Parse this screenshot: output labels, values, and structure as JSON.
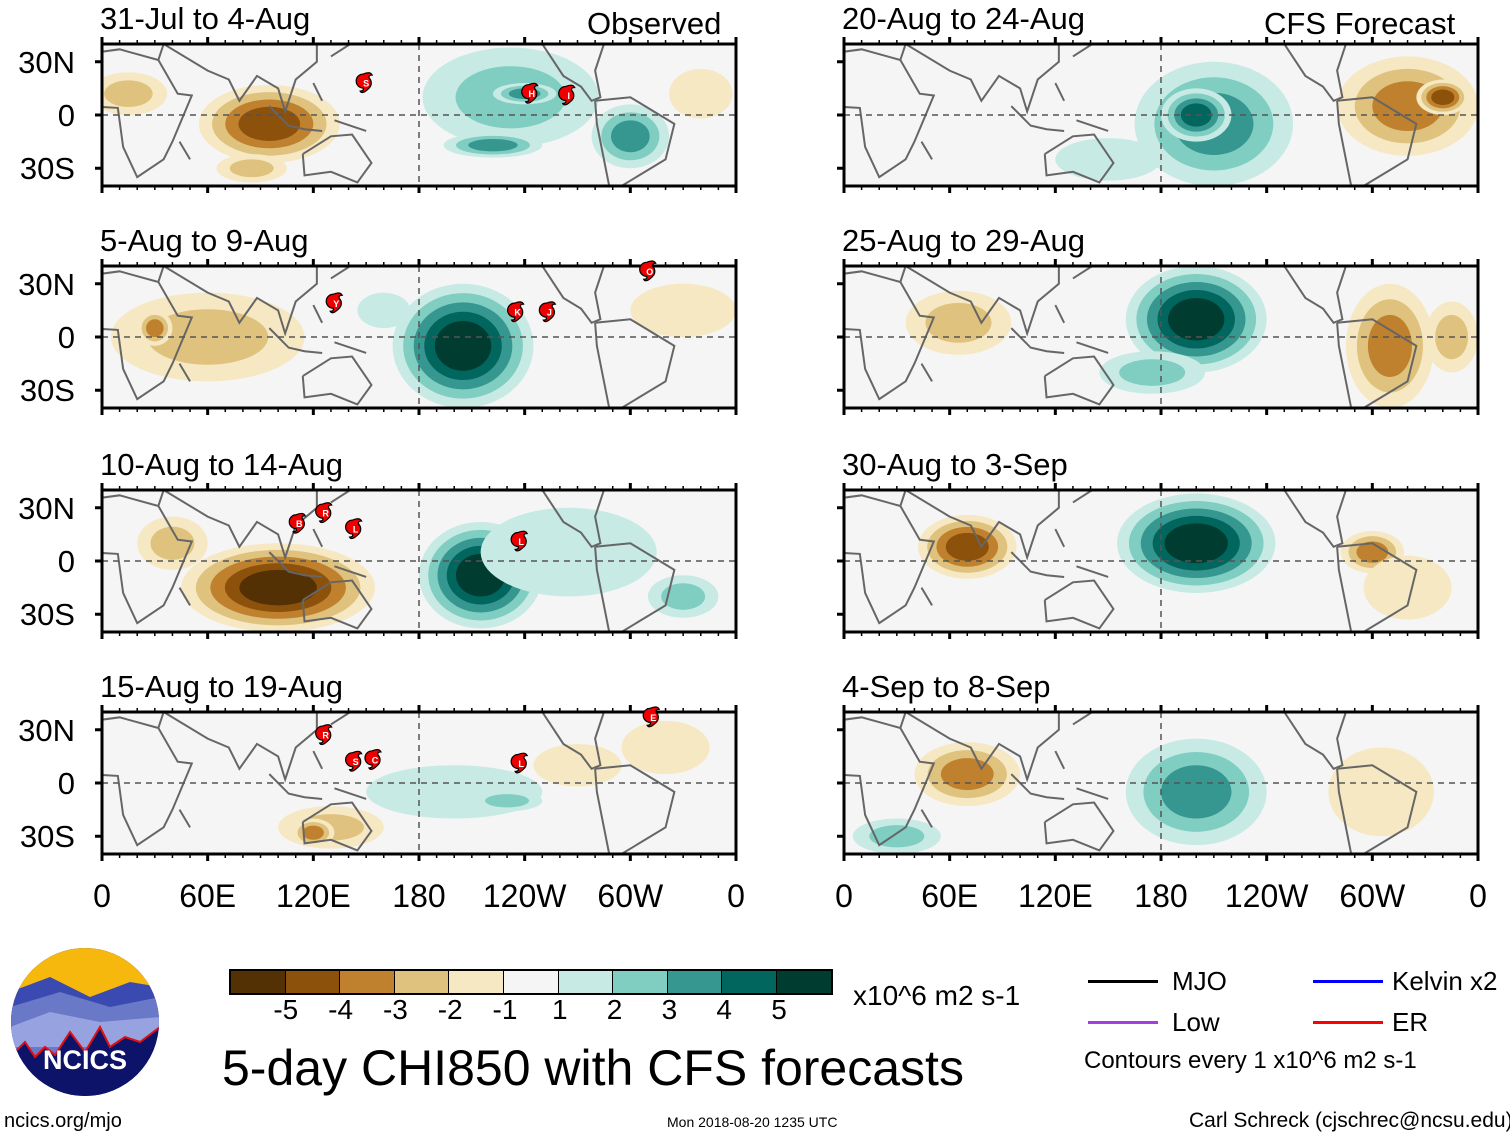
{
  "labels": {
    "observed": "Observed",
    "forecast": "CFS Forecast",
    "lat_ticks": [
      "30N",
      "0",
      "30S"
    ],
    "lon_ticks": [
      "0",
      "60E",
      "120E",
      "180",
      "120W",
      "60W",
      "0"
    ],
    "units": "x10^6 m2 s-1",
    "main_title": "5-day CHI850 with CFS forecasts",
    "url": "ncics.org/mjo",
    "timestamp": "Mon 2018-08-20 1235 UTC",
    "author": "Carl Schreck (cjschrec@ncsu.edu)",
    "contours_note": "Contours every 1 x10^6 m2 s-1",
    "logo_text": "NCICS"
  },
  "legend": [
    {
      "label": "MJO",
      "color": "#000000"
    },
    {
      "label": "Kelvin x2",
      "color": "#0000ff"
    },
    {
      "label": "Low",
      "color": "#a040e0"
    },
    {
      "label": "ER",
      "color": "#ff0000"
    }
  ],
  "colorbar": {
    "tick_labels": [
      "-5",
      "-4",
      "-3",
      "-2",
      "-1",
      "1",
      "2",
      "3",
      "4",
      "5"
    ],
    "colors": [
      "#543005",
      "#8c510a",
      "#bf812d",
      "#dfc27d",
      "#f6e8c3",
      "#f5f5f5",
      "#c7eae5",
      "#80cdc1",
      "#35978f",
      "#01665e",
      "#003c30"
    ]
  },
  "map_domain": {
    "lon_range": [
      0,
      360
    ],
    "lat_range": [
      -40,
      40
    ]
  },
  "panels": [
    {
      "title": "31-Jul to 4-Aug",
      "kind": "observed",
      "anomalies": [
        [
          95,
          -5,
          40,
          22,
          -4
        ],
        [
          15,
          12,
          22,
          12,
          -2
        ],
        [
          85,
          -30,
          20,
          8,
          -2
        ],
        [
          232,
          10,
          50,
          28,
          2
        ],
        [
          240,
          12,
          18,
          6,
          3
        ],
        [
          222,
          -17,
          28,
          7,
          3
        ],
        [
          300,
          -12,
          22,
          18,
          3
        ],
        [
          340,
          12,
          18,
          14,
          -1
        ]
      ],
      "storms": [
        {
          "letter": "S",
          "lon": 150,
          "lat": 18
        },
        {
          "letter": "H",
          "lon": 244,
          "lat": 12
        },
        {
          "letter": "I",
          "lon": 265,
          "lat": 11
        }
      ]
    },
    {
      "title": "5-Aug to 9-Aug",
      "kind": "observed",
      "anomalies": [
        [
          60,
          0,
          55,
          25,
          -2
        ],
        [
          30,
          5,
          10,
          10,
          -3
        ],
        [
          205,
          -5,
          40,
          35,
          5
        ],
        [
          160,
          15,
          15,
          10,
          1
        ],
        [
          330,
          15,
          30,
          15,
          -1
        ]
      ],
      "storms": [
        {
          "letter": "Y",
          "lon": 133,
          "lat": 19
        },
        {
          "letter": "K",
          "lon": 236,
          "lat": 14
        },
        {
          "letter": "J",
          "lon": 254,
          "lat": 14
        },
        {
          "letter": "O",
          "lon": 311,
          "lat": 37
        }
      ]
    },
    {
      "title": "10-Aug to 14-Aug",
      "kind": "observed",
      "anomalies": [
        [
          100,
          -15,
          55,
          25,
          -5
        ],
        [
          40,
          10,
          20,
          15,
          -2
        ],
        [
          215,
          -8,
          35,
          30,
          5
        ],
        [
          265,
          5,
          50,
          25,
          1
        ],
        [
          330,
          -20,
          20,
          12,
          2
        ]
      ],
      "storms": [
        {
          "letter": "B",
          "lon": 112,
          "lat": 21
        },
        {
          "letter": "R",
          "lon": 127,
          "lat": 27
        },
        {
          "letter": "L",
          "lon": 144,
          "lat": 18
        },
        {
          "letter": "L",
          "lon": 238,
          "lat": 11
        }
      ]
    },
    {
      "title": "15-Aug to 19-Aug",
      "kind": "observed",
      "anomalies": [
        [
          130,
          -25,
          30,
          12,
          -2
        ],
        [
          120,
          -28,
          12,
          8,
          -3
        ],
        [
          200,
          -5,
          50,
          15,
          1
        ],
        [
          230,
          -10,
          20,
          6,
          2
        ],
        [
          270,
          10,
          25,
          12,
          -1
        ],
        [
          320,
          20,
          25,
          15,
          -1
        ]
      ],
      "storms": [
        {
          "letter": "R",
          "lon": 127,
          "lat": 27
        },
        {
          "letter": "S",
          "lon": 144,
          "lat": 12
        },
        {
          "letter": "C",
          "lon": 155,
          "lat": 13
        },
        {
          "letter": "L",
          "lon": 238,
          "lat": 11
        },
        {
          "letter": "E",
          "lon": 313,
          "lat": 37
        }
      ]
    },
    {
      "title": "20-Aug to 24-Aug",
      "kind": "forecast",
      "anomalies": [
        [
          210,
          -5,
          45,
          35,
          3
        ],
        [
          200,
          0,
          20,
          15,
          4
        ],
        [
          150,
          -25,
          30,
          12,
          1
        ],
        [
          320,
          5,
          40,
          28,
          -3
        ],
        [
          340,
          10,
          15,
          10,
          -4
        ]
      ],
      "storms": []
    },
    {
      "title": "25-Aug to 29-Aug",
      "kind": "forecast",
      "anomalies": [
        [
          200,
          10,
          40,
          30,
          5
        ],
        [
          65,
          8,
          30,
          18,
          -2
        ],
        [
          175,
          -20,
          30,
          12,
          2
        ],
        [
          310,
          -5,
          25,
          35,
          -3
        ],
        [
          345,
          0,
          15,
          20,
          -2
        ]
      ],
      "storms": []
    },
    {
      "title": "30-Aug to 3-Sep",
      "kind": "forecast",
      "anomalies": [
        [
          200,
          10,
          45,
          28,
          5
        ],
        [
          70,
          8,
          28,
          18,
          -4
        ],
        [
          300,
          5,
          18,
          12,
          -3
        ],
        [
          320,
          -15,
          25,
          18,
          -1
        ]
      ],
      "storms": []
    },
    {
      "title": "4-Sep to 8-Sep",
      "kind": "forecast",
      "anomalies": [
        [
          200,
          -5,
          40,
          30,
          3
        ],
        [
          70,
          5,
          30,
          18,
          -3
        ],
        [
          30,
          -30,
          25,
          10,
          2
        ],
        [
          305,
          -5,
          30,
          25,
          -1
        ]
      ],
      "storms": []
    }
  ]
}
